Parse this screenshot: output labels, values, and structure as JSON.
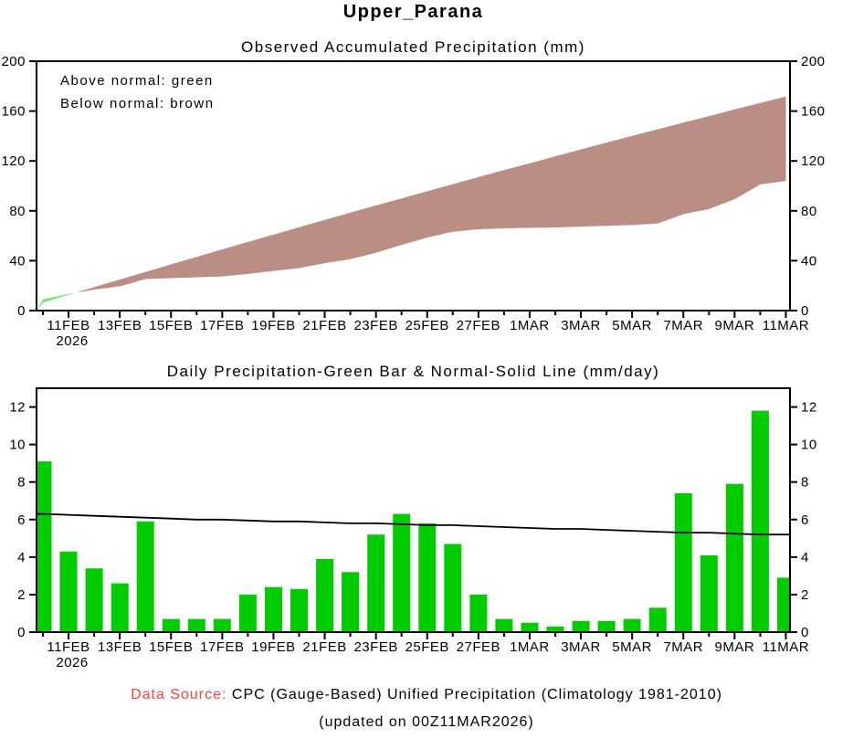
{
  "page": {
    "title": "Upper_Parana"
  },
  "colors": {
    "bar_green": "#00CC00",
    "above_normal_green": "#7CE47C",
    "below_normal_brown": "#BB8E85",
    "normal_line_black": "#000000",
    "source_label_red": "#FF4040",
    "axis_black": "#000000"
  },
  "footer": {
    "source_label": "Data Source:",
    "source_text": "CPC (Gauge-Based) Unified Precipitation (Climatology 1981-2010)",
    "updated_text": "(updated on 00Z11MAR2026)"
  },
  "chart_data": [
    {
      "type": "area",
      "title": "Observed Accumulated Precipitation (mm)",
      "legend": [
        "Above normal: green",
        "Below normal: brown"
      ],
      "ylim": [
        0,
        200
      ],
      "yticks": [
        0,
        40,
        80,
        120,
        160,
        200
      ],
      "grid": false,
      "year_label": "2026",
      "x_tick_labels": [
        "11FEB",
        "13FEB",
        "15FEB",
        "17FEB",
        "19FEB",
        "21FEB",
        "23FEB",
        "25FEB",
        "27FEB",
        "1MAR",
        "3MAR",
        "5MAR",
        "7MAR",
        "9MAR",
        "11MAR"
      ],
      "dates": [
        "10FEB",
        "11FEB",
        "12FEB",
        "13FEB",
        "14FEB",
        "15FEB",
        "16FEB",
        "17FEB",
        "18FEB",
        "19FEB",
        "20FEB",
        "21FEB",
        "22FEB",
        "23FEB",
        "24FEB",
        "25FEB",
        "26FEB",
        "27FEB",
        "28FEB",
        "1MAR",
        "2MAR",
        "3MAR",
        "4MAR",
        "5MAR",
        "6MAR",
        "7MAR",
        "8MAR",
        "9MAR",
        "10MAR",
        "11MAR"
      ],
      "series": [
        {
          "name": "observed_accumulated",
          "values": [
            9.1,
            13.4,
            16.8,
            19.4,
            25.3,
            26.0,
            26.7,
            27.4,
            29.4,
            31.8,
            34.1,
            38.0,
            41.2,
            46.4,
            52.7,
            58.5,
            63.2,
            65.2,
            65.9,
            66.4,
            66.7,
            67.3,
            67.9,
            68.6,
            69.9,
            77.3,
            81.4,
            89.3,
            101.1,
            104.0
          ]
        },
        {
          "name": "normal_accumulated",
          "values": [
            6.3,
            12.6,
            18.8,
            24.9,
            31.0,
            37.1,
            43.1,
            49.1,
            55.0,
            60.9,
            66.8,
            72.7,
            78.5,
            84.3,
            90.0,
            95.7,
            101.4,
            107.1,
            112.7,
            118.2,
            123.7,
            129.2,
            134.7,
            140.1,
            145.4,
            150.7,
            156.0,
            161.3,
            166.5,
            171.7
          ]
        }
      ]
    },
    {
      "type": "bar",
      "title": "Daily Precipitation-Green Bar & Normal-Solid Line (mm/day)",
      "ylim": [
        0,
        13
      ],
      "yticks": [
        0,
        2,
        4,
        6,
        8,
        10,
        12
      ],
      "grid": false,
      "year_label": "2026",
      "x_tick_labels": [
        "11FEB",
        "13FEB",
        "15FEB",
        "17FEB",
        "19FEB",
        "21FEB",
        "23FEB",
        "25FEB",
        "27FEB",
        "1MAR",
        "3MAR",
        "5MAR",
        "7MAR",
        "9MAR",
        "11MAR"
      ],
      "dates": [
        "10FEB",
        "11FEB",
        "12FEB",
        "13FEB",
        "14FEB",
        "15FEB",
        "16FEB",
        "17FEB",
        "18FEB",
        "19FEB",
        "20FEB",
        "21FEB",
        "22FEB",
        "23FEB",
        "24FEB",
        "25FEB",
        "26FEB",
        "27FEB",
        "28FEB",
        "1MAR",
        "2MAR",
        "3MAR",
        "4MAR",
        "5MAR",
        "6MAR",
        "7MAR",
        "8MAR",
        "9MAR",
        "10MAR",
        "11MAR"
      ],
      "series": [
        {
          "name": "daily_precipitation",
          "values": [
            9.1,
            4.3,
            3.4,
            2.6,
            5.9,
            0.7,
            0.7,
            0.7,
            2.0,
            2.4,
            2.3,
            3.9,
            3.2,
            5.2,
            6.3,
            5.8,
            4.7,
            2.0,
            0.7,
            0.5,
            0.3,
            0.6,
            0.6,
            0.7,
            1.3,
            7.4,
            4.1,
            7.9,
            11.8,
            2.9
          ]
        },
        {
          "name": "normal_daily",
          "values": [
            6.3,
            6.25,
            6.2,
            6.15,
            6.1,
            6.05,
            6.0,
            6.0,
            5.95,
            5.9,
            5.9,
            5.85,
            5.8,
            5.8,
            5.75,
            5.7,
            5.7,
            5.65,
            5.6,
            5.55,
            5.5,
            5.5,
            5.45,
            5.4,
            5.35,
            5.3,
            5.3,
            5.25,
            5.2,
            5.2
          ]
        }
      ]
    }
  ]
}
